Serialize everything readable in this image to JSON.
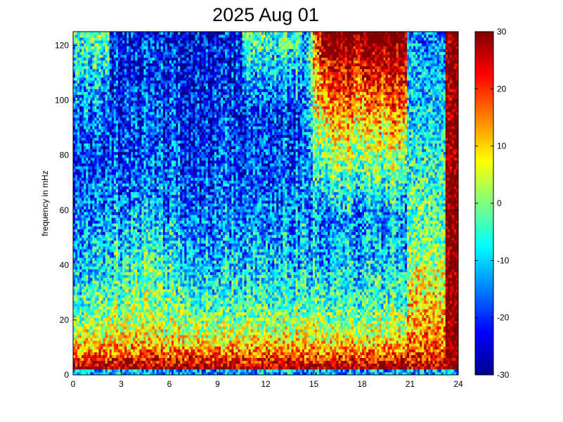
{
  "chart_data": {
    "type": "heatmap",
    "title": "2025 Aug 01",
    "xlabel": "",
    "ylabel": "frequency in mHz",
    "xlim": [
      0,
      24
    ],
    "ylim": [
      0,
      125
    ],
    "x_ticks": [
      0,
      3,
      6,
      9,
      12,
      15,
      18,
      21,
      24
    ],
    "y_ticks": [
      0,
      20,
      40,
      60,
      80,
      100,
      120
    ],
    "colorbar": {
      "colormap": "jet",
      "range": [
        -30,
        30
      ],
      "ticks": [
        30,
        20,
        10,
        0,
        -10,
        -20,
        -30
      ]
    },
    "grid": false
  }
}
